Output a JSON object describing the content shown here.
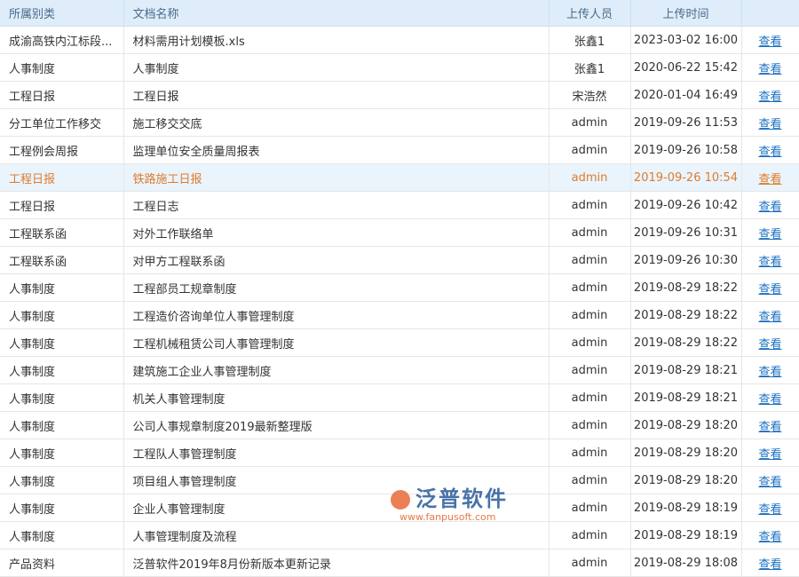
{
  "headers": [
    "所属别类",
    "文档名称",
    "上传人员",
    "上传时间",
    ""
  ],
  "rows": [
    [
      "成渝高铁内江标段...",
      "材料需用计划模板.xls",
      "张鑫1",
      "2023-03-02 16:00",
      "查看"
    ],
    [
      "人事制度",
      "人事制度",
      "张鑫1",
      "2020-06-22 15:42",
      "查看"
    ],
    [
      "工程日报",
      "工程日报",
      "宋浩然",
      "2020-01-04 16:49",
      "查看"
    ],
    [
      "分工单位工作移交",
      "施工移交交底",
      "admin",
      "2019-09-26 11:53",
      "查看"
    ],
    [
      "工程例会周报",
      "监理单位安全质量周报表",
      "admin",
      "2019-09-26 10:58",
      "查看"
    ],
    [
      "工程日报",
      "铁路施工日报",
      "admin",
      "2019-09-26 10:54",
      "查看"
    ],
    [
      "工程日报",
      "工程日志",
      "admin",
      "2019-09-26 10:42",
      "查看"
    ],
    [
      "工程联系函",
      "对外工作联络单",
      "admin",
      "2019-09-26 10:31",
      "查看"
    ],
    [
      "工程联系函",
      "对甲方工程联系函",
      "admin",
      "2019-09-26 10:30",
      "查看"
    ],
    [
      "人事制度",
      "工程部员工规章制度",
      "admin",
      "2019-08-29 18:22",
      "查看"
    ],
    [
      "人事制度",
      "工程造价咨询单位人事管理制度",
      "admin",
      "2019-08-29 18:22",
      "查看"
    ],
    [
      "人事制度",
      "工程机械租赁公司人事管理制度",
      "admin",
      "2019-08-29 18:22",
      "查看"
    ],
    [
      "人事制度",
      "建筑施工企业人事管理制度",
      "admin",
      "2019-08-29 18:21",
      "查看"
    ],
    [
      "人事制度",
      "机关人事管理制度",
      "admin",
      "2019-08-29 18:21",
      "查看"
    ],
    [
      "人事制度",
      "公司人事规章制度2019最新整理版",
      "admin",
      "2019-08-29 18:20",
      "查看"
    ],
    [
      "人事制度",
      "工程队人事管理制度",
      "admin",
      "2019-08-29 18:20",
      "查看"
    ],
    [
      "人事制度",
      "项目组人事管理制度",
      "admin",
      "2019-08-29 18:20",
      "查看"
    ],
    [
      "人事制度",
      "企业人事管理制度",
      "admin",
      "2019-08-29 18:19",
      "查看"
    ],
    [
      "人事制度",
      "人事管理制度及流程",
      "admin",
      "2019-08-29 18:19",
      "查看"
    ],
    [
      "产品资料",
      "泛普软件2019年8月份新版本更新记录",
      "admin",
      "2019-08-29 18:08",
      "查看"
    ]
  ],
  "highlighted_row": 5,
  "watermark": {
    "name": "泛普软件",
    "url": "www.fanpusoft.com"
  },
  "colors": {
    "header_bg": "#deedf9",
    "highlight_bg": "#eaf4fd",
    "highlight_text": "#e07b2a",
    "link": "#1a6fc0"
  }
}
